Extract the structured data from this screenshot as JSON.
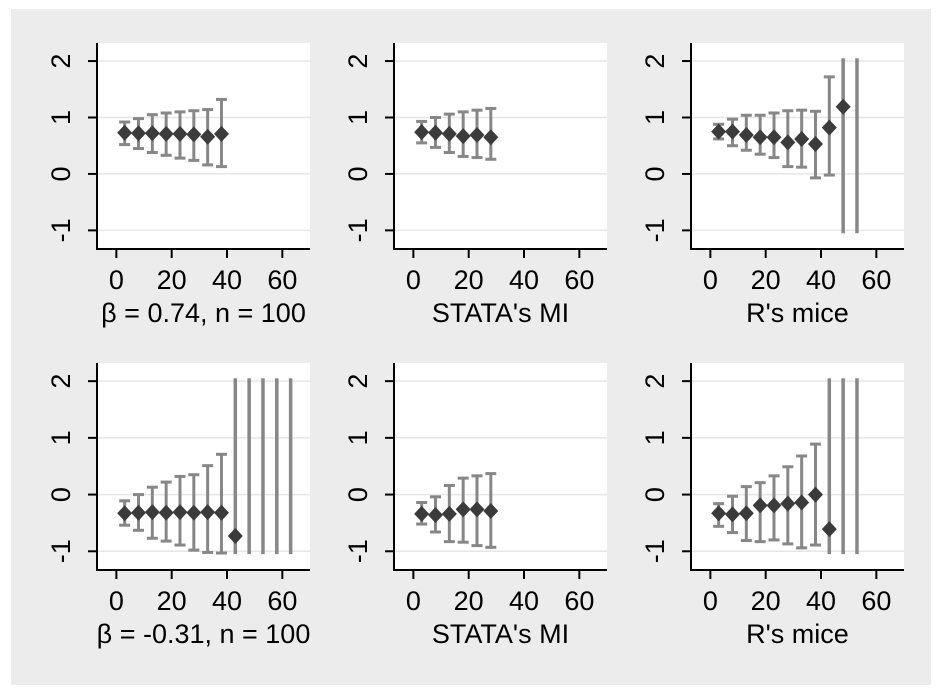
{
  "figure": {
    "background": "#ffffff",
    "canvas_bg": "#ececec",
    "plot_bg": "#ffffff",
    "axis_color": "#000000",
    "grid_color": "#e6e6e6",
    "marker_color": "#3b3b3b",
    "errorbar_color": "#878787",
    "text_color": "#000000"
  },
  "chart_data": [
    {
      "type": "errorbar",
      "row": 0,
      "col": 0,
      "title": "β = 0.74, n = 100",
      "x_ticks": [
        0,
        20,
        40,
        60
      ],
      "y_ticks": [
        -1,
        0,
        1,
        2
      ],
      "xlim": [
        -7,
        70
      ],
      "ylim": [
        -1.33,
        2.32
      ],
      "clip_range": [
        -1.05,
        2.05
      ],
      "grid": true,
      "points": [
        {
          "x": 3,
          "y": 0.73,
          "lo": 0.52,
          "hi": 0.92
        },
        {
          "x": 8,
          "y": 0.72,
          "lo": 0.45,
          "hi": 0.98
        },
        {
          "x": 13,
          "y": 0.72,
          "lo": 0.38,
          "hi": 1.05
        },
        {
          "x": 18,
          "y": 0.71,
          "lo": 0.33,
          "hi": 1.08
        },
        {
          "x": 23,
          "y": 0.71,
          "lo": 0.28,
          "hi": 1.1
        },
        {
          "x": 28,
          "y": 0.7,
          "lo": 0.24,
          "hi": 1.12
        },
        {
          "x": 33,
          "y": 0.66,
          "lo": 0.16,
          "hi": 1.14
        },
        {
          "x": 38,
          "y": 0.71,
          "lo": 0.13,
          "hi": 1.32
        }
      ],
      "clipped_bars": []
    },
    {
      "type": "errorbar",
      "row": 0,
      "col": 1,
      "title": "STATA's MI",
      "x_ticks": [
        0,
        20,
        40,
        60
      ],
      "y_ticks": [
        -1,
        0,
        1,
        2
      ],
      "xlim": [
        -7,
        70
      ],
      "ylim": [
        -1.33,
        2.32
      ],
      "clip_range": [
        -1.05,
        2.05
      ],
      "grid": true,
      "points": [
        {
          "x": 3,
          "y": 0.74,
          "lo": 0.55,
          "hi": 0.93
        },
        {
          "x": 8,
          "y": 0.73,
          "lo": 0.47,
          "hi": 1.0
        },
        {
          "x": 13,
          "y": 0.71,
          "lo": 0.38,
          "hi": 1.06
        },
        {
          "x": 18,
          "y": 0.67,
          "lo": 0.31,
          "hi": 1.1
        },
        {
          "x": 23,
          "y": 0.69,
          "lo": 0.29,
          "hi": 1.13
        },
        {
          "x": 28,
          "y": 0.65,
          "lo": 0.26,
          "hi": 1.16
        }
      ],
      "clipped_bars": []
    },
    {
      "type": "errorbar",
      "row": 0,
      "col": 2,
      "title": "R's mice",
      "x_ticks": [
        0,
        20,
        40,
        60
      ],
      "y_ticks": [
        -1,
        0,
        1,
        2
      ],
      "xlim": [
        -7,
        70
      ],
      "ylim": [
        -1.33,
        2.32
      ],
      "clip_range": [
        -1.05,
        2.05
      ],
      "grid": true,
      "points": [
        {
          "x": 3,
          "y": 0.75,
          "lo": 0.62,
          "hi": 0.88
        },
        {
          "x": 8,
          "y": 0.75,
          "lo": 0.5,
          "hi": 0.97
        },
        {
          "x": 13,
          "y": 0.69,
          "lo": 0.42,
          "hi": 1.04
        },
        {
          "x": 18,
          "y": 0.65,
          "lo": 0.35,
          "hi": 1.04
        },
        {
          "x": 23,
          "y": 0.65,
          "lo": 0.29,
          "hi": 1.08
        },
        {
          "x": 28,
          "y": 0.56,
          "lo": 0.13,
          "hi": 1.12
        },
        {
          "x": 33,
          "y": 0.62,
          "lo": 0.12,
          "hi": 1.13
        },
        {
          "x": 38,
          "y": 0.53,
          "lo": -0.07,
          "hi": 1.11
        },
        {
          "x": 43,
          "y": 0.82,
          "lo": -0.02,
          "hi": 1.72
        },
        {
          "x": 48,
          "y": 1.19,
          "clipped": true
        }
      ],
      "clipped_bars": [
        53
      ]
    },
    {
      "type": "errorbar",
      "row": 1,
      "col": 0,
      "title": "β = -0.31, n = 100",
      "x_ticks": [
        0,
        20,
        40,
        60
      ],
      "y_ticks": [
        -1,
        0,
        1,
        2
      ],
      "xlim": [
        -7,
        70
      ],
      "ylim": [
        -1.33,
        2.32
      ],
      "clip_range": [
        -1.05,
        2.05
      ],
      "grid": true,
      "points": [
        {
          "x": 3,
          "y": -0.33,
          "lo": -0.54,
          "hi": -0.11
        },
        {
          "x": 8,
          "y": -0.32,
          "lo": -0.63,
          "hi": 0.0
        },
        {
          "x": 13,
          "y": -0.31,
          "lo": -0.77,
          "hi": 0.13
        },
        {
          "x": 18,
          "y": -0.32,
          "lo": -0.82,
          "hi": 0.22
        },
        {
          "x": 23,
          "y": -0.31,
          "lo": -0.89,
          "hi": 0.32
        },
        {
          "x": 28,
          "y": -0.32,
          "lo": -0.98,
          "hi": 0.35
        },
        {
          "x": 33,
          "y": -0.31,
          "lo": -1.02,
          "hi": 0.51
        },
        {
          "x": 38,
          "y": -0.32,
          "lo": -1.03,
          "hi": 0.71
        },
        {
          "x": 43,
          "y": -0.73,
          "clipped": true
        }
      ],
      "clipped_bars": [
        48,
        53,
        58,
        63
      ]
    },
    {
      "type": "errorbar",
      "row": 1,
      "col": 1,
      "title": "STATA's MI",
      "x_ticks": [
        0,
        20,
        40,
        60
      ],
      "y_ticks": [
        -1,
        0,
        1,
        2
      ],
      "xlim": [
        -7,
        70
      ],
      "ylim": [
        -1.33,
        2.32
      ],
      "clip_range": [
        -1.05,
        2.05
      ],
      "grid": true,
      "points": [
        {
          "x": 3,
          "y": -0.34,
          "lo": -0.52,
          "hi": -0.14
        },
        {
          "x": 8,
          "y": -0.36,
          "lo": -0.66,
          "hi": -0.04
        },
        {
          "x": 13,
          "y": -0.34,
          "lo": -0.83,
          "hi": 0.16
        },
        {
          "x": 18,
          "y": -0.26,
          "lo": -0.84,
          "hi": 0.29
        },
        {
          "x": 23,
          "y": -0.26,
          "lo": -0.9,
          "hi": 0.33
        },
        {
          "x": 28,
          "y": -0.29,
          "lo": -0.93,
          "hi": 0.37
        }
      ],
      "clipped_bars": []
    },
    {
      "type": "errorbar",
      "row": 1,
      "col": 2,
      "title": "R's mice",
      "x_ticks": [
        0,
        20,
        40,
        60
      ],
      "y_ticks": [
        -1,
        0,
        1,
        2
      ],
      "xlim": [
        -7,
        70
      ],
      "ylim": [
        -1.33,
        2.32
      ],
      "clip_range": [
        -1.05,
        2.05
      ],
      "grid": true,
      "points": [
        {
          "x": 3,
          "y": -0.33,
          "lo": -0.56,
          "hi": -0.16
        },
        {
          "x": 8,
          "y": -0.35,
          "lo": -0.67,
          "hi": -0.03
        },
        {
          "x": 13,
          "y": -0.33,
          "lo": -0.81,
          "hi": 0.14
        },
        {
          "x": 18,
          "y": -0.19,
          "lo": -0.83,
          "hi": 0.21
        },
        {
          "x": 23,
          "y": -0.19,
          "lo": -0.8,
          "hi": 0.33
        },
        {
          "x": 28,
          "y": -0.16,
          "lo": -0.87,
          "hi": 0.49
        },
        {
          "x": 33,
          "y": -0.14,
          "lo": -0.94,
          "hi": 0.68
        },
        {
          "x": 38,
          "y": 0.0,
          "lo": -0.89,
          "hi": 0.89
        },
        {
          "x": 43,
          "y": -0.61,
          "clipped": true
        }
      ],
      "clipped_bars": [
        48,
        53
      ]
    }
  ]
}
